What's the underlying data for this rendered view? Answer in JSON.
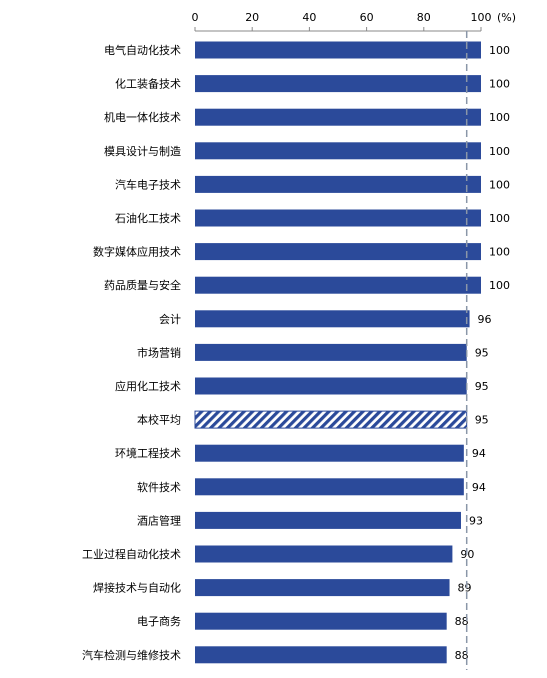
{
  "chart_data": {
    "type": "bar",
    "orientation": "horizontal",
    "categories": [
      "电气自动化技术",
      "化工装备技术",
      "机电一体化技术",
      "模具设计与制造",
      "汽车电子技术",
      "石油化工技术",
      "数字媒体应用技术",
      "药品质量与安全",
      "会计",
      "市场营销",
      "应用化工技术",
      "本校平均",
      "环境工程技术",
      "软件技术",
      "酒店管理",
      "工业过程自动化技术",
      "焊接技术与自动化",
      "电子商务",
      "汽车检测与维修技术"
    ],
    "values": [
      100,
      100,
      100,
      100,
      100,
      100,
      100,
      100,
      96,
      95,
      95,
      95,
      94,
      94,
      93,
      90,
      89,
      88,
      88
    ],
    "highlight_category": "本校平均",
    "x_ticks": [
      "0",
      "20",
      "40",
      "60",
      "80",
      "100"
    ],
    "x_unit": "(%)",
    "xlim": [
      0,
      100
    ],
    "reference_line": 95,
    "colors": {
      "bar": "#2b4a9a",
      "reference_line": "#8a96a8",
      "axis": "#888888"
    }
  }
}
